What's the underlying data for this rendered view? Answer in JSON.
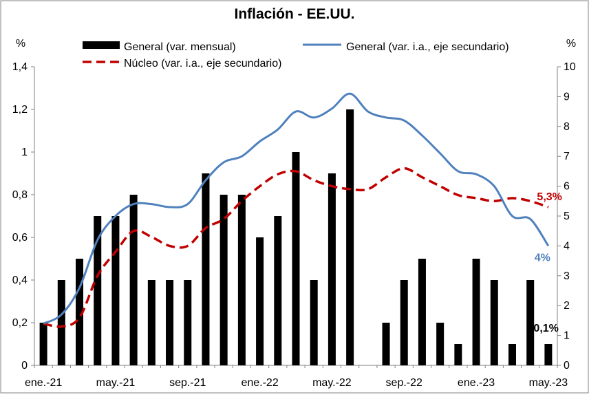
{
  "chart_data": {
    "type": "bar",
    "title": "Inflación - EE.UU.",
    "y_unit_left": "%",
    "y_unit_right": "%",
    "ylim_left": [
      0,
      1.4
    ],
    "ylim_right": [
      0,
      10
    ],
    "yticks_left": [
      "0",
      "0,2",
      "0,4",
      "0,6",
      "0,8",
      "1",
      "1,2",
      "1,4"
    ],
    "yticks_right": [
      "0",
      "1",
      "2",
      "3",
      "4",
      "5",
      "6",
      "7",
      "8",
      "9",
      "10"
    ],
    "categories": [
      "ene.-21",
      "feb.-21",
      "mar.-21",
      "abr.-21",
      "may.-21",
      "jun.-21",
      "jul.-21",
      "ago.-21",
      "sep.-21",
      "oct.-21",
      "nov.-21",
      "dic.-21",
      "ene.-22",
      "feb.-22",
      "mar.-22",
      "abr.-22",
      "may.-22",
      "jun.-22",
      "jul.-22",
      "ago.-22",
      "sep.-22",
      "oct.-22",
      "nov.-22",
      "dic.-22",
      "ene.-23",
      "feb.-23",
      "mar.-23",
      "abr.-23",
      "may.-23"
    ],
    "xtick_labels": [
      {
        "index": 0,
        "label": "ene.-21"
      },
      {
        "index": 4,
        "label": "may.-21"
      },
      {
        "index": 8,
        "label": "sep.-21"
      },
      {
        "index": 12,
        "label": "ene.-22"
      },
      {
        "index": 16,
        "label": "may.-22"
      },
      {
        "index": 20,
        "label": "sep.-22"
      },
      {
        "index": 24,
        "label": "ene.-23"
      },
      {
        "index": 28,
        "label": "may.-23"
      }
    ],
    "series": [
      {
        "name": "General (var. mensual)",
        "type": "bar",
        "axis": "left",
        "color": "#000000",
        "values": [
          0.2,
          0.4,
          0.5,
          0.7,
          0.7,
          0.8,
          0.4,
          0.4,
          0.4,
          0.9,
          0.8,
          0.8,
          0.6,
          0.7,
          1.0,
          0.4,
          0.9,
          1.2,
          0.0,
          0.2,
          0.4,
          0.5,
          0.2,
          0.1,
          0.5,
          0.4,
          0.1,
          0.4,
          0.1
        ]
      },
      {
        "name": "General (var. i.a., eje secundario)",
        "type": "line",
        "axis": "right",
        "color": "#4f81bd",
        "values": [
          1.4,
          1.7,
          2.6,
          4.2,
          5.0,
          5.4,
          5.4,
          5.3,
          5.4,
          6.2,
          6.8,
          7.0,
          7.5,
          7.9,
          8.5,
          8.3,
          8.6,
          9.1,
          8.5,
          8.3,
          8.2,
          7.7,
          7.1,
          6.5,
          6.4,
          6.0,
          5.0,
          4.9,
          4.0
        ]
      },
      {
        "name": "Núcleo (var. i.a., eje secundario)",
        "type": "line",
        "axis": "right",
        "style": "dashed",
        "color": "#c00000",
        "values": [
          1.4,
          1.3,
          1.6,
          3.0,
          3.8,
          4.5,
          4.3,
          4.0,
          4.0,
          4.6,
          4.9,
          5.5,
          6.0,
          6.4,
          6.5,
          6.2,
          6.0,
          5.9,
          5.9,
          6.3,
          6.6,
          6.3,
          6.0,
          5.7,
          5.6,
          5.5,
          5.6,
          5.5,
          5.3
        ]
      }
    ],
    "annotations": [
      {
        "text": "5,3%",
        "series": 2,
        "index": 28,
        "color": "#c00000"
      },
      {
        "text": "4%",
        "series": 1,
        "index": 28,
        "color": "#4f81bd"
      },
      {
        "text": "0,1%",
        "series": 0,
        "index": 28,
        "color": "#000000"
      }
    ]
  }
}
